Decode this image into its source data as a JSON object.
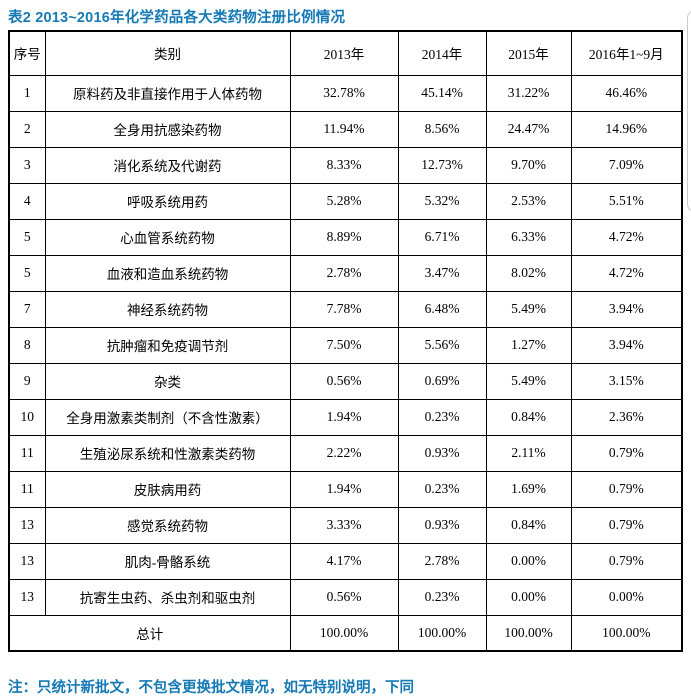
{
  "page": {
    "title": "表2 2013~2016年化学药品各大类药物注册比例情况",
    "note": "注：只统计新批文，不包含更换批文情况，如无特别说明，下同",
    "accent_color": "#1579b5"
  },
  "table": {
    "headers": [
      "序号",
      "类别",
      "2013年",
      "2014年",
      "2015年",
      "2016年1~9月"
    ],
    "rows": [
      {
        "no": "1",
        "category": "原料药及非直接作用于人体药物",
        "values": [
          "32.78%",
          "45.14%",
          "31.22%",
          "46.46%"
        ]
      },
      {
        "no": "2",
        "category": "全身用抗感染药物",
        "values": [
          "11.94%",
          "8.56%",
          "24.47%",
          "14.96%"
        ]
      },
      {
        "no": "3",
        "category": "消化系统及代谢药",
        "values": [
          "8.33%",
          "12.73%",
          "9.70%",
          "7.09%"
        ]
      },
      {
        "no": "4",
        "category": "呼吸系统用药",
        "values": [
          "5.28%",
          "5.32%",
          "2.53%",
          "5.51%"
        ]
      },
      {
        "no": "5",
        "category": "心血管系统药物",
        "values": [
          "8.89%",
          "6.71%",
          "6.33%",
          "4.72%"
        ]
      },
      {
        "no": "5",
        "category": "血液和造血系统药物",
        "values": [
          "2.78%",
          "3.47%",
          "8.02%",
          "4.72%"
        ]
      },
      {
        "no": "7",
        "category": "神经系统药物",
        "values": [
          "7.78%",
          "6.48%",
          "5.49%",
          "3.94%"
        ]
      },
      {
        "no": "8",
        "category": "抗肿瘤和免疫调节剂",
        "values": [
          "7.50%",
          "5.56%",
          "1.27%",
          "3.94%"
        ]
      },
      {
        "no": "9",
        "category": "杂类",
        "values": [
          "0.56%",
          "0.69%",
          "5.49%",
          "3.15%"
        ]
      },
      {
        "no": "10",
        "category": "全身用激素类制剂（不含性激素）",
        "values": [
          "1.94%",
          "0.23%",
          "0.84%",
          "2.36%"
        ]
      },
      {
        "no": "11",
        "category": "生殖泌尿系统和性激素类药物",
        "values": [
          "2.22%",
          "0.93%",
          "2.11%",
          "0.79%"
        ]
      },
      {
        "no": "11",
        "category": "皮肤病用药",
        "values": [
          "1.94%",
          "0.23%",
          "1.69%",
          "0.79%"
        ]
      },
      {
        "no": "13",
        "category": "感觉系统药物",
        "values": [
          "3.33%",
          "0.93%",
          "0.84%",
          "0.79%"
        ]
      },
      {
        "no": "13",
        "category": "肌肉-骨骼系统",
        "values": [
          "4.17%",
          "2.78%",
          "0.00%",
          "0.79%"
        ]
      },
      {
        "no": "13",
        "category": "抗寄生虫药、杀虫剂和驱虫剂",
        "values": [
          "0.56%",
          "0.23%",
          "0.00%",
          "0.00%"
        ]
      }
    ],
    "total": {
      "label": "总计",
      "values": [
        "100.00%",
        "100.00%",
        "100.00%",
        "100.00%"
      ]
    }
  }
}
